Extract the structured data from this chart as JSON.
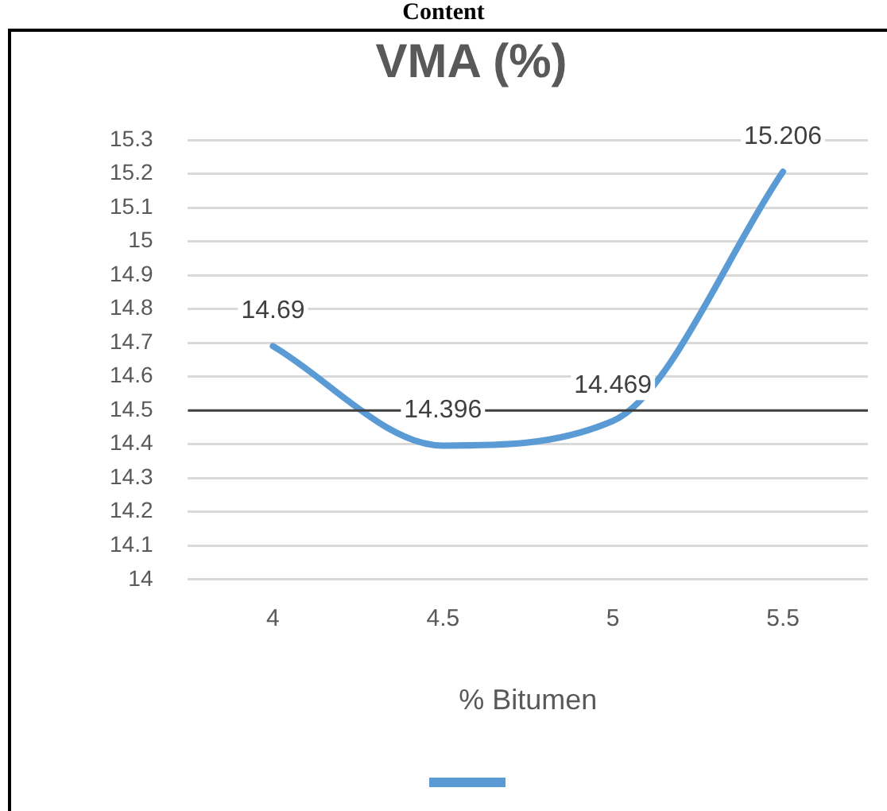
{
  "chart_data": {
    "type": "line",
    "title": "VMA (%)",
    "xlabel": "% Bitumen",
    "annotations": [
      "Content"
    ],
    "categories": [
      "4",
      "4.5",
      "5",
      "5.5"
    ],
    "series": [
      {
        "color": "#5b9bd5",
        "values": [
          14.69,
          14.396,
          14.469,
          15.206
        ]
      }
    ],
    "ylim": [
      14,
      15.3
    ],
    "yticks": [
      14,
      14.1,
      14.2,
      14.3,
      14.4,
      14.5,
      14.6,
      14.7,
      14.8,
      14.9,
      15,
      15.1,
      15.2,
      15.3
    ],
    "ref_lines": [
      {
        "axis": "y",
        "value": 14.5,
        "color": "#404040"
      }
    ],
    "grid": "y",
    "marker": "none",
    "line_style": "solid",
    "data_labels": true
  }
}
